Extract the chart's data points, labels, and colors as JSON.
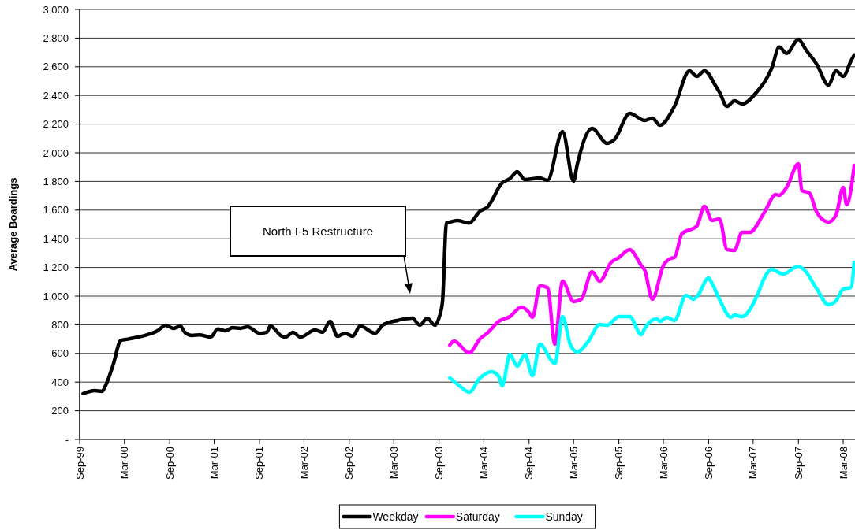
{
  "chart_data": {
    "type": "line",
    "ylabel": "Average Boardings",
    "xlim": [
      "1999-09-01",
      "2008-04-18"
    ],
    "ylim": [
      0,
      3000
    ],
    "yticks": [
      {
        "value": 0,
        "label": "-"
      },
      200,
      400,
      600,
      800,
      {
        "value": 1000,
        "label": "1,000"
      },
      {
        "value": 1200,
        "label": "1,200"
      },
      {
        "value": 1400,
        "label": "1,400"
      },
      {
        "value": 1600,
        "label": "1,600"
      },
      {
        "value": 1800,
        "label": "1,800"
      },
      {
        "value": 2000,
        "label": "2,000"
      },
      {
        "value": 2200,
        "label": "2,200"
      },
      {
        "value": 2400,
        "label": "2,400"
      },
      {
        "value": 2600,
        "label": "2,600"
      },
      {
        "value": 2800,
        "label": "2,800"
      },
      {
        "value": 3000,
        "label": "3,000"
      }
    ],
    "xticks": [
      {
        "value": "1999-09",
        "label": "Sep-99"
      },
      {
        "value": "2000-03",
        "label": "Mar-00"
      },
      {
        "value": "2000-09",
        "label": "Sep-00"
      },
      {
        "value": "2001-03",
        "label": "Mar-01"
      },
      {
        "value": "2001-09",
        "label": "Sep-01"
      },
      {
        "value": "2002-03",
        "label": "Mar-02"
      },
      {
        "value": "2002-09",
        "label": "Sep-02"
      },
      {
        "value": "2003-03",
        "label": "Mar-03"
      },
      {
        "value": "2003-09",
        "label": "Sep-03"
      },
      {
        "value": "2004-03",
        "label": "Mar-04"
      },
      {
        "value": "2004-09",
        "label": "Sep-04"
      },
      {
        "value": "2005-03",
        "label": "Mar-05"
      },
      {
        "value": "2005-09",
        "label": "Sep-05"
      },
      {
        "value": "2006-03",
        "label": "Mar-06"
      },
      {
        "value": "2006-09",
        "label": "Sep-06"
      },
      {
        "value": "2007-03",
        "label": "Mar-07"
      },
      {
        "value": "2007-09",
        "label": "Sep-07"
      },
      {
        "value": "2008-03",
        "label": "Mar-08"
      }
    ],
    "grid": "y",
    "legend": "bottom",
    "marker": "none",
    "line_style": "solid",
    "annotations": [
      "North I-5 Restructure"
    ],
    "series": [
      {
        "name": "Weekday",
        "color": "#000000",
        "x": [
          "1999-09-15",
          "1999-11-01",
          "1999-12-01",
          "1999-12-15",
          "2000-01-15",
          "2000-02-15",
          "2000-03-15",
          "2000-06-01",
          "2000-07-15",
          "2000-08-15",
          "2000-09-15",
          "2000-10-15",
          "2000-11-01",
          "2000-12-01",
          "2001-01-01",
          "2001-02-15",
          "2001-03-15",
          "2001-04-15",
          "2001-05-15",
          "2001-06-15",
          "2001-07-15",
          "2001-09-01",
          "2001-10-01",
          "2001-10-15",
          "2001-12-01",
          "2001-12-15",
          "2002-01-15",
          "2002-02-15",
          "2002-04-15",
          "2002-05-15",
          "2002-06-15",
          "2002-07-15",
          "2002-08-15",
          "2002-09-15",
          "2002-10-15",
          "2002-12-15",
          "2003-01-15",
          "2003-03-15",
          "2003-05-15",
          "2003-06-15",
          "2003-07-15",
          "2003-08-15",
          "2003-09-01",
          "2003-09-15",
          "2003-10-01",
          "2003-10-15",
          "2003-11-15",
          "2004-01-01",
          "2004-02-15",
          "2004-03-15",
          "2004-05-15",
          "2004-06-15",
          "2004-07-15",
          "2004-08-15",
          "2004-10-15",
          "2004-11-15",
          "2005-01-15",
          "2005-03-01",
          "2005-03-15",
          "2005-05-15",
          "2005-07-15",
          "2005-08-15",
          "2005-10-15",
          "2005-12-15",
          "2006-01-15",
          "2006-02-15",
          "2006-04-15",
          "2006-06-15",
          "2006-07-15",
          "2006-08-15",
          "2006-10-01",
          "2006-10-15",
          "2006-11-15",
          "2006-12-15",
          "2007-01-15",
          "2007-03-15",
          "2007-05-15",
          "2007-06-15",
          "2007-07-15",
          "2007-09-01",
          "2007-10-01",
          "2007-11-15",
          "2008-01-01",
          "2008-02-01",
          "2008-03-01",
          "2008-04-01",
          "2008-04-15"
        ],
        "values": [
          320,
          340,
          335,
          375,
          520,
          690,
          700,
          730,
          760,
          797,
          775,
          790,
          748,
          725,
          730,
          714,
          770,
          758,
          780,
          775,
          786,
          741,
          748,
          791,
          720,
          714,
          747,
          714,
          764,
          748,
          824,
          720,
          741,
          720,
          791,
          741,
          797,
          830,
          846,
          797,
          846,
          797,
          850,
          960,
          1510,
          1517,
          1527,
          1510,
          1593,
          1620,
          1790,
          1820,
          1868,
          1813,
          1824,
          1808,
          2149,
          1802,
          1912,
          2170,
          2066,
          2094,
          2275,
          2225,
          2242,
          2192,
          2324,
          2572,
          2533,
          2572,
          2462,
          2423,
          2324,
          2363,
          2341,
          2423,
          2588,
          2737,
          2693,
          2791,
          2720,
          2616,
          2473,
          2572,
          2533,
          2638,
          2682
        ]
      },
      {
        "name": "Saturday",
        "color": "#ff00ff",
        "x": [
          "2003-10-15",
          "2003-11-01",
          "2004-01-01",
          "2004-02-15",
          "2004-03-15",
          "2004-05-01",
          "2004-06-15",
          "2004-08-01",
          "2004-09-01",
          "2004-09-15",
          "2004-10-15",
          "2004-11-15",
          "2004-12-15",
          "2005-01-15",
          "2005-03-01",
          "2005-04-01",
          "2005-05-15",
          "2005-06-15",
          "2005-08-01",
          "2005-09-01",
          "2005-10-15",
          "2005-12-01",
          "2005-12-15",
          "2006-01-15",
          "2006-03-01",
          "2006-04-01",
          "2006-04-15",
          "2006-05-15",
          "2006-07-15",
          "2006-08-15",
          "2006-09-15",
          "2006-10-15",
          "2006-11-15",
          "2006-12-15",
          "2007-01-15",
          "2007-02-15",
          "2007-04-15",
          "2007-06-01",
          "2007-06-15",
          "2007-07-15",
          "2007-09-01",
          "2007-09-15",
          "2007-10-15",
          "2007-11-15",
          "2008-01-01",
          "2008-02-01",
          "2008-03-01",
          "2008-03-15",
          "2008-04-15"
        ],
        "values": [
          659,
          687,
          604,
          703,
          742,
          824,
          857,
          923,
          885,
          852,
          1071,
          1060,
          665,
          1104,
          962,
          978,
          1170,
          1104,
          1236,
          1269,
          1324,
          1214,
          1181,
          978,
          1214,
          1264,
          1269,
          1434,
          1489,
          1627,
          1528,
          1539,
          1324,
          1319,
          1445,
          1445,
          1583,
          1709,
          1703,
          1758,
          1923,
          1736,
          1720,
          1583,
          1517,
          1566,
          1758,
          1638,
          1912
        ]
      },
      {
        "name": "Sunday",
        "color": "#00ffff",
        "x": [
          "2003-10-15",
          "2003-12-01",
          "2004-01-01",
          "2004-02-15",
          "2004-04-01",
          "2004-05-01",
          "2004-05-15",
          "2004-06-15",
          "2004-07-15",
          "2004-08-15",
          "2004-09-15",
          "2004-10-15",
          "2004-12-01",
          "2004-12-15",
          "2005-01-15",
          "2005-02-15",
          "2005-03-15",
          "2005-05-01",
          "2005-06-15",
          "2005-07-15",
          "2005-09-01",
          "2005-10-15",
          "2005-12-01",
          "2005-12-15",
          "2006-02-01",
          "2006-02-15",
          "2006-03-15",
          "2006-04-15",
          "2006-06-01",
          "2006-07-01",
          "2006-07-15",
          "2006-09-01",
          "2006-09-15",
          "2006-10-15",
          "2006-12-01",
          "2006-12-15",
          "2007-01-15",
          "2007-03-15",
          "2007-04-15",
          "2007-05-15",
          "2007-07-01",
          "2007-09-01",
          "2007-10-01",
          "2007-11-15",
          "2008-01-01",
          "2008-02-01",
          "2008-03-01",
          "2008-04-01",
          "2008-04-15"
        ],
        "values": [
          429,
          363,
          330,
          429,
          473,
          440,
          374,
          593,
          511,
          593,
          445,
          665,
          550,
          528,
          857,
          665,
          610,
          687,
          802,
          797,
          857,
          857,
          731,
          775,
          841,
          824,
          852,
          830,
          1005,
          978,
          995,
          1126,
          1088,
          978,
          852,
          868,
          857,
          995,
          1126,
          1187,
          1154,
          1209,
          1170,
          1049,
          940,
          967,
          1049,
          1060,
          1236
        ]
      }
    ]
  }
}
